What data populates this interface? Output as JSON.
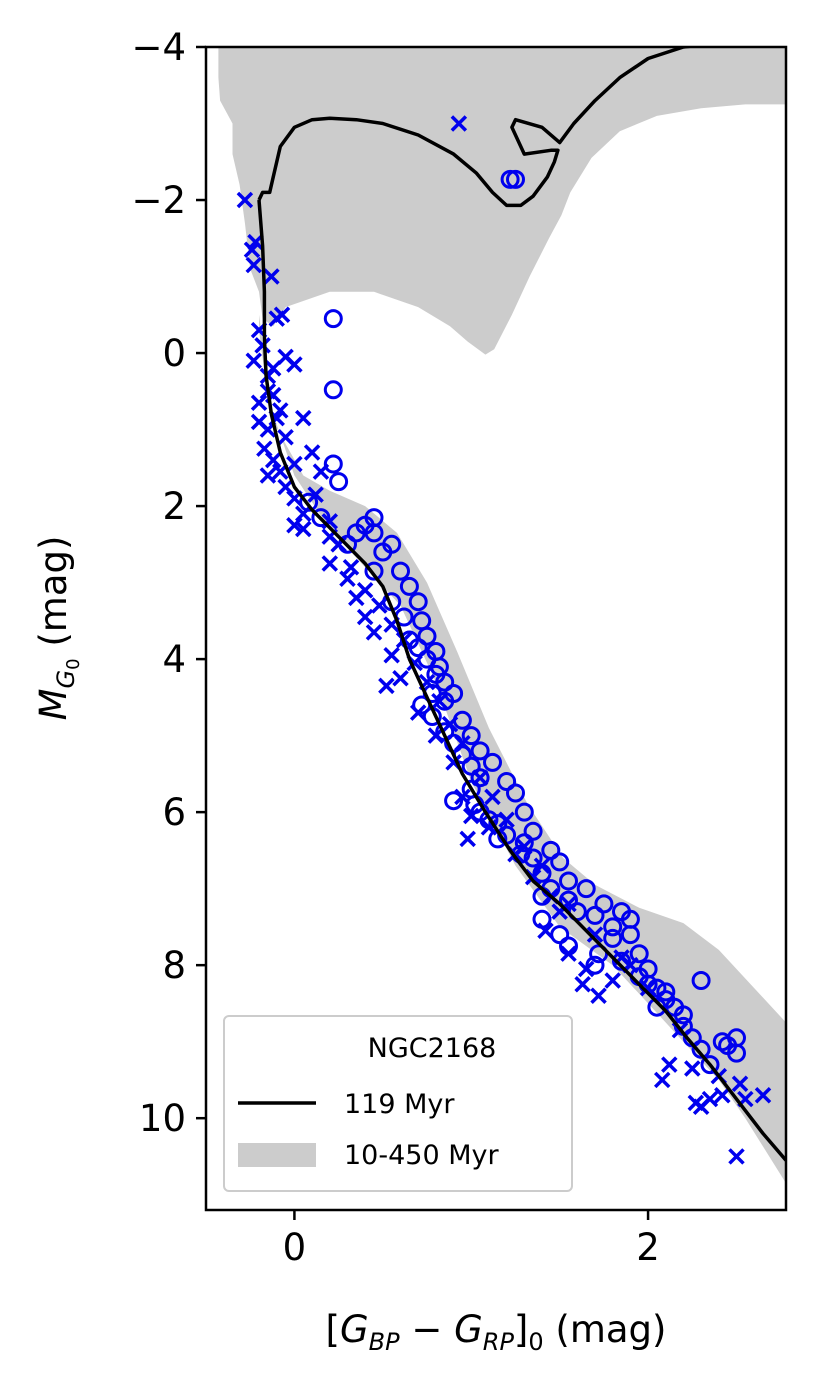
{
  "chart_data": {
    "type": "scatter",
    "xlabel": "[G_BP − G_RP]_0 (mag)",
    "ylabel": "M_G0 (mag)",
    "xlim": [
      -0.5,
      2.78
    ],
    "ylim": [
      11.2,
      -4
    ],
    "y_inverted": true,
    "xticks": [
      "0",
      "2"
    ],
    "yticks": [
      "−4",
      "−2",
      "0",
      "2",
      "4",
      "6",
      "8",
      "10"
    ],
    "grid": false,
    "legend": {
      "placement": "bottom-left",
      "title": "NGC2168",
      "entries": [
        {
          "label": "119 Myr",
          "style": "line",
          "color": "#000000"
        },
        {
          "label": "10-450 Myr",
          "style": "band",
          "color": "#cccccc"
        }
      ]
    },
    "colors": {
      "points": "#0000ee",
      "isochrone": "#000000",
      "band": "#cccccc"
    },
    "band_10_450_Myr": [
      [
        -0.43,
        -3.6
      ],
      [
        -0.42,
        -3.3
      ],
      [
        -0.35,
        -3.0
      ],
      [
        -0.35,
        -2.6
      ],
      [
        -0.31,
        -2.2
      ],
      [
        -0.28,
        -1.7
      ],
      [
        -0.25,
        -1.1
      ],
      [
        -0.2,
        -0.8
      ],
      [
        -0.18,
        -0.45
      ],
      [
        -0.12,
        -0.35
      ],
      [
        -0.05,
        -0.6
      ],
      [
        0.2,
        -0.8
      ],
      [
        0.45,
        -0.8
      ],
      [
        0.7,
        -0.6
      ],
      [
        0.88,
        -0.35
      ],
      [
        0.98,
        -0.15
      ],
      [
        1.08,
        0.02
      ],
      [
        1.13,
        -0.05
      ],
      [
        1.23,
        -0.5
      ],
      [
        1.33,
        -1.0
      ],
      [
        1.44,
        -1.5
      ],
      [
        1.51,
        -1.8
      ],
      [
        1.56,
        -2.1
      ],
      [
        1.68,
        -2.55
      ],
      [
        1.84,
        -2.9
      ],
      [
        2.05,
        -3.1
      ],
      [
        2.3,
        -3.2
      ],
      [
        2.55,
        -3.25
      ],
      [
        2.78,
        -3.25
      ],
      [
        2.78,
        -4.0
      ],
      [
        -0.43,
        -4.0
      ]
    ],
    "band_lower_edge": [
      [
        -0.2,
        -0.5
      ],
      [
        -0.12,
        0.9
      ],
      [
        0.05,
        1.6
      ],
      [
        0.2,
        1.8
      ],
      [
        0.4,
        2.0
      ],
      [
        0.58,
        2.35
      ],
      [
        0.75,
        3.0
      ],
      [
        0.92,
        3.9
      ],
      [
        1.1,
        4.9
      ],
      [
        1.32,
        5.9
      ],
      [
        1.52,
        6.6
      ],
      [
        1.7,
        6.95
      ],
      [
        1.95,
        7.25
      ],
      [
        2.2,
        7.45
      ],
      [
        2.4,
        7.8
      ],
      [
        2.6,
        8.3
      ],
      [
        2.78,
        8.75
      ],
      [
        2.78,
        10.85
      ],
      [
        2.55,
        10.0
      ],
      [
        2.4,
        9.5
      ],
      [
        2.2,
        9.0
      ],
      [
        2.0,
        8.5
      ],
      [
        1.8,
        8.0
      ],
      [
        1.5,
        7.5
      ],
      [
        1.25,
        6.7
      ],
      [
        1.0,
        5.6
      ],
      [
        0.8,
        4.3
      ],
      [
        0.6,
        3.3
      ],
      [
        0.4,
        2.8
      ],
      [
        0.2,
        2.3
      ],
      [
        0.0,
        1.6
      ],
      [
        -0.15,
        0.6
      ],
      [
        -0.2,
        -0.3
      ]
    ],
    "isochrone_119_Myr": [
      [
        -0.2,
        -2.0
      ],
      [
        -0.18,
        -2.1
      ],
      [
        -0.15,
        -2.1
      ],
      [
        -0.14,
        -2.1
      ],
      [
        -0.12,
        -2.3
      ],
      [
        -0.08,
        -2.7
      ],
      [
        0.0,
        -2.95
      ],
      [
        0.1,
        -3.05
      ],
      [
        0.2,
        -3.07
      ],
      [
        0.35,
        -3.05
      ],
      [
        0.5,
        -3.0
      ],
      [
        0.7,
        -2.85
      ],
      [
        0.9,
        -2.6
      ],
      [
        1.03,
        -2.35
      ],
      [
        1.12,
        -2.1
      ],
      [
        1.2,
        -1.93
      ],
      [
        1.28,
        -1.93
      ],
      [
        1.35,
        -2.05
      ],
      [
        1.43,
        -2.3
      ],
      [
        1.47,
        -2.5
      ],
      [
        1.49,
        -2.65
      ],
      [
        1.45,
        -2.65
      ],
      [
        1.3,
        -2.6
      ],
      [
        1.23,
        -2.95
      ],
      [
        1.25,
        -3.05
      ],
      [
        1.4,
        -2.95
      ],
      [
        1.5,
        -2.75
      ],
      [
        1.58,
        -3.0
      ],
      [
        1.7,
        -3.3
      ],
      [
        1.84,
        -3.6
      ],
      [
        2.0,
        -3.85
      ],
      [
        2.2,
        -4.0
      ],
      [
        2.4,
        -4.05
      ]
    ],
    "isochrone_119_Myr_ms": [
      [
        -0.2,
        -2.0
      ],
      [
        -0.18,
        -1.4
      ],
      [
        -0.17,
        -0.8
      ],
      [
        -0.17,
        -0.2
      ],
      [
        -0.16,
        0.3
      ],
      [
        -0.13,
        0.8
      ],
      [
        -0.08,
        1.3
      ],
      [
        0.0,
        1.75
      ],
      [
        0.1,
        2.05
      ],
      [
        0.25,
        2.4
      ],
      [
        0.4,
        2.75
      ],
      [
        0.5,
        3.05
      ],
      [
        0.58,
        3.5
      ],
      [
        0.65,
        4.0
      ],
      [
        0.75,
        4.5
      ],
      [
        0.85,
        5.0
      ],
      [
        0.95,
        5.5
      ],
      [
        1.08,
        6.0
      ],
      [
        1.22,
        6.5
      ],
      [
        1.35,
        6.9
      ],
      [
        1.5,
        7.2
      ],
      [
        1.65,
        7.55
      ],
      [
        1.8,
        7.9
      ],
      [
        1.95,
        8.25
      ],
      [
        2.1,
        8.6
      ],
      [
        2.22,
        8.95
      ],
      [
        2.35,
        9.3
      ],
      [
        2.5,
        9.75
      ],
      [
        2.65,
        10.2
      ],
      [
        2.78,
        10.55
      ]
    ],
    "circles": [
      [
        0.22,
        -0.45
      ],
      [
        0.22,
        0.48
      ],
      [
        0.22,
        1.45
      ],
      [
        0.25,
        1.68
      ],
      [
        0.45,
        2.15
      ],
      [
        0.4,
        2.25
      ],
      [
        0.45,
        2.35
      ],
      [
        0.55,
        2.5
      ],
      [
        0.6,
        2.85
      ],
      [
        0.65,
        3.05
      ],
      [
        0.7,
        3.25
      ],
      [
        0.72,
        3.5
      ],
      [
        0.75,
        3.7
      ],
      [
        0.8,
        3.9
      ],
      [
        0.82,
        4.1
      ],
      [
        0.85,
        4.3
      ],
      [
        0.78,
        4.45
      ],
      [
        0.72,
        4.6
      ],
      [
        0.78,
        4.75
      ],
      [
        0.85,
        4.95
      ],
      [
        0.9,
        5.1
      ],
      [
        0.95,
        5.25
      ],
      [
        1.0,
        5.4
      ],
      [
        1.05,
        5.55
      ],
      [
        1.0,
        5.7
      ],
      [
        0.9,
        5.85
      ],
      [
        1.05,
        6.0
      ],
      [
        1.15,
        6.15
      ],
      [
        1.2,
        6.3
      ],
      [
        1.3,
        6.4
      ],
      [
        1.35,
        6.6
      ],
      [
        1.4,
        6.8
      ],
      [
        1.45,
        7.0
      ],
      [
        1.55,
        7.15
      ],
      [
        1.6,
        7.3
      ],
      [
        1.7,
        7.35
      ],
      [
        1.8,
        7.5
      ],
      [
        1.9,
        7.6
      ],
      [
        1.95,
        7.85
      ],
      [
        2.0,
        8.05
      ],
      [
        2.05,
        8.3
      ],
      [
        2.1,
        8.45
      ],
      [
        2.15,
        8.55
      ],
      [
        2.2,
        8.8
      ],
      [
        2.25,
        8.95
      ],
      [
        2.3,
        8.2
      ],
      [
        2.45,
        9.05
      ],
      [
        2.5,
        9.15
      ],
      [
        1.22,
        -2.27
      ],
      [
        1.25,
        -2.27
      ],
      [
        0.5,
        2.6
      ],
      [
        0.35,
        2.35
      ],
      [
        0.55,
        3.25
      ],
      [
        0.62,
        3.45
      ],
      [
        0.7,
        3.85
      ],
      [
        0.75,
        4.0
      ],
      [
        0.8,
        4.2
      ],
      [
        0.9,
        4.45
      ],
      [
        0.95,
        4.8
      ],
      [
        1.0,
        5.0
      ],
      [
        1.05,
        5.2
      ],
      [
        1.12,
        5.35
      ],
      [
        1.2,
        5.6
      ],
      [
        1.25,
        5.75
      ],
      [
        1.3,
        6.0
      ],
      [
        1.1,
        6.1
      ],
      [
        1.35,
        6.25
      ],
      [
        1.45,
        6.5
      ],
      [
        1.5,
        6.65
      ],
      [
        1.55,
        6.9
      ],
      [
        1.65,
        7.0
      ],
      [
        1.75,
        7.2
      ],
      [
        1.85,
        7.3
      ],
      [
        1.9,
        7.4
      ],
      [
        1.8,
        7.65
      ],
      [
        1.72,
        7.85
      ],
      [
        1.85,
        7.95
      ],
      [
        1.95,
        8.15
      ],
      [
        2.0,
        8.25
      ],
      [
        2.1,
        8.35
      ],
      [
        2.2,
        8.65
      ],
      [
        2.3,
        9.1
      ],
      [
        2.35,
        9.3
      ],
      [
        2.42,
        9.0
      ],
      [
        2.5,
        8.95
      ],
      [
        1.4,
        7.4
      ],
      [
        1.5,
        7.6
      ],
      [
        1.55,
        7.75
      ],
      [
        1.7,
        8.0
      ],
      [
        0.85,
        4.55
      ],
      [
        0.65,
        3.75
      ],
      [
        0.45,
        2.85
      ],
      [
        0.3,
        2.5
      ],
      [
        0.15,
        2.15
      ],
      [
        0.08,
        1.95
      ],
      [
        1.02,
        5.9
      ],
      [
        1.15,
        6.35
      ],
      [
        1.28,
        6.55
      ],
      [
        1.4,
        7.1
      ],
      [
        2.05,
        8.55
      ]
    ],
    "crosses": [
      [
        -0.28,
        -2.0
      ],
      [
        0.93,
        -3.0
      ],
      [
        -0.23,
        -1.15
      ],
      [
        -0.24,
        -1.35
      ],
      [
        -0.22,
        -1.45
      ],
      [
        -0.13,
        -1.0
      ],
      [
        -0.23,
        0.1
      ],
      [
        -0.18,
        -0.1
      ],
      [
        -0.1,
        -0.45
      ],
      [
        -0.07,
        -0.5
      ],
      [
        -0.12,
        0.2
      ],
      [
        -0.05,
        0.05
      ],
      [
        0.0,
        0.15
      ],
      [
        -0.15,
        0.5
      ],
      [
        -0.2,
        0.65
      ],
      [
        -0.2,
        0.9
      ],
      [
        -0.15,
        1.0
      ],
      [
        -0.1,
        0.85
      ],
      [
        -0.05,
        1.1
      ],
      [
        0.05,
        0.85
      ],
      [
        -0.17,
        1.25
      ],
      [
        -0.12,
        1.4
      ],
      [
        -0.08,
        1.55
      ],
      [
        -0.15,
        1.6
      ],
      [
        -0.05,
        1.75
      ],
      [
        0.0,
        1.9
      ],
      [
        0.1,
        1.3
      ],
      [
        0.15,
        1.55
      ],
      [
        0.05,
        2.1
      ],
      [
        0.05,
        2.3
      ],
      [
        0.0,
        2.25
      ],
      [
        0.2,
        2.4
      ],
      [
        0.2,
        2.75
      ],
      [
        0.3,
        2.95
      ],
      [
        0.35,
        3.2
      ],
      [
        0.4,
        3.45
      ],
      [
        0.45,
        3.65
      ],
      [
        0.55,
        3.95
      ],
      [
        0.6,
        4.25
      ],
      [
        0.52,
        4.35
      ],
      [
        0.7,
        4.7
      ],
      [
        0.8,
        5.0
      ],
      [
        0.9,
        5.35
      ],
      [
        0.95,
        5.8
      ],
      [
        1.0,
        6.05
      ],
      [
        0.98,
        6.35
      ],
      [
        1.1,
        6.2
      ],
      [
        1.25,
        6.55
      ],
      [
        1.35,
        6.85
      ],
      [
        1.45,
        7.1
      ],
      [
        1.5,
        7.3
      ],
      [
        1.42,
        7.55
      ],
      [
        1.55,
        7.85
      ],
      [
        1.65,
        8.05
      ],
      [
        1.63,
        8.25
      ],
      [
        1.72,
        8.4
      ],
      [
        1.8,
        8.2
      ],
      [
        1.9,
        8.0
      ],
      [
        2.08,
        9.5
      ],
      [
        2.12,
        9.3
      ],
      [
        2.25,
        9.35
      ],
      [
        2.3,
        9.85
      ],
      [
        2.35,
        9.75
      ],
      [
        2.42,
        9.7
      ],
      [
        2.55,
        9.75
      ],
      [
        2.65,
        9.7
      ],
      [
        2.5,
        10.5
      ],
      [
        2.27,
        9.8
      ],
      [
        -0.2,
        -0.3
      ],
      [
        -0.15,
        0.3
      ],
      [
        -0.12,
        0.55
      ],
      [
        -0.08,
        0.75
      ],
      [
        0.0,
        1.45
      ],
      [
        0.12,
        1.85
      ],
      [
        0.2,
        2.2
      ],
      [
        0.25,
        2.5
      ],
      [
        0.32,
        2.8
      ],
      [
        0.4,
        3.1
      ],
      [
        0.48,
        3.3
      ],
      [
        0.55,
        3.55
      ],
      [
        0.62,
        3.75
      ],
      [
        0.68,
        4.05
      ],
      [
        0.75,
        4.3
      ],
      [
        0.82,
        4.55
      ],
      [
        0.88,
        4.85
      ],
      [
        0.95,
        5.1
      ],
      [
        1.05,
        5.55
      ],
      [
        1.12,
        5.8
      ],
      [
        1.2,
        6.1
      ],
      [
        1.3,
        6.45
      ],
      [
        1.4,
        6.7
      ],
      [
        1.55,
        7.2
      ],
      [
        1.7,
        7.6
      ],
      [
        1.85,
        7.9
      ],
      [
        2.0,
        8.3
      ],
      [
        2.18,
        8.85
      ],
      [
        2.4,
        9.45
      ],
      [
        2.52,
        9.55
      ]
    ]
  }
}
